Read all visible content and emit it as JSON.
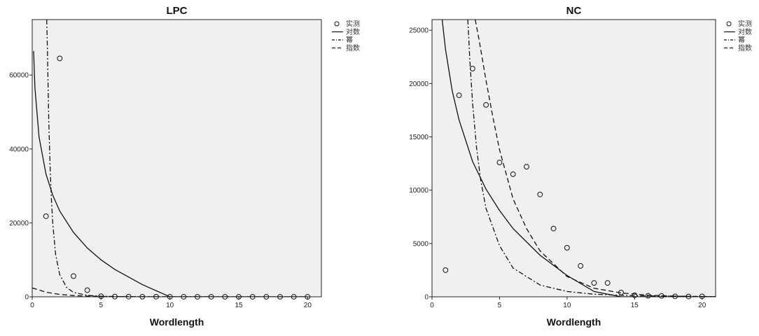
{
  "chart_data": [
    {
      "type": "scatter",
      "title": "LPC",
      "xlabel": "Wordlength",
      "ylabel": "",
      "xlim": [
        0,
        21
      ],
      "ylim": [
        0,
        75000
      ],
      "xticks": [
        0,
        5,
        10,
        15,
        20
      ],
      "yticks": [
        0,
        20000,
        40000,
        60000
      ],
      "grid": false,
      "legend_position": "right-top",
      "legend": [
        "实测",
        "对数",
        "幂",
        "指数"
      ],
      "observed": {
        "name": "实测",
        "x": [
          1,
          2,
          3,
          4,
          5,
          6,
          7,
          8,
          9,
          10,
          11,
          12,
          13,
          14,
          15,
          16,
          17,
          18,
          19,
          20
        ],
        "y": [
          21800,
          64500,
          5600,
          1800,
          150,
          60,
          40,
          30,
          20,
          10,
          10,
          5,
          5,
          5,
          5,
          5,
          5,
          5,
          5,
          5
        ]
      },
      "fits": [
        {
          "name": "对数",
          "x": [
            0.1,
            0.2,
            0.5,
            1,
            1.5,
            2,
            3,
            4,
            5,
            6,
            8,
            10,
            12.2,
            15,
            20
          ],
          "y": [
            66500,
            56500,
            43200,
            33200,
            27400,
            23200,
            17400,
            13200,
            10000,
            7400,
            3300,
            0,
            0,
            0,
            0
          ]
        },
        {
          "name": "幂",
          "x": [
            1.05,
            1.1,
            1.2,
            1.3,
            1.4,
            1.5,
            1.7,
            2,
            2.5,
            3,
            4,
            5,
            7,
            10,
            15,
            20
          ],
          "y": [
            75000,
            68000,
            48000,
            35000,
            26000,
            19500,
            11500,
            6000,
            2500,
            1200,
            400,
            150,
            40,
            10,
            2,
            1
          ]
        },
        {
          "name": "指数",
          "x": [
            0,
            1,
            2,
            3,
            4,
            5,
            6,
            7,
            8,
            10,
            15,
            20
          ],
          "y": [
            2400,
            1250,
            650,
            340,
            180,
            90,
            50,
            25,
            10,
            3,
            0,
            0
          ]
        }
      ]
    },
    {
      "type": "scatter",
      "title": "NC",
      "xlabel": "Wordlength",
      "ylabel": "",
      "xlim": [
        0,
        21
      ],
      "ylim": [
        0,
        26000
      ],
      "xticks": [
        0,
        5,
        10,
        15,
        20
      ],
      "yticks": [
        0,
        5000,
        10000,
        15000,
        20000,
        25000
      ],
      "grid": false,
      "legend_position": "right-top",
      "legend": [
        "实测",
        "对数",
        "幂",
        "指数"
      ],
      "observed": {
        "name": "实测",
        "x": [
          1,
          2,
          3,
          4,
          5,
          6,
          7,
          8,
          9,
          10,
          11,
          12,
          13,
          14,
          15,
          16,
          17,
          18,
          19,
          20
        ],
        "y": [
          2500,
          18900,
          21400,
          18000,
          12600,
          11500,
          12200,
          9600,
          6400,
          4600,
          2900,
          1300,
          1300,
          400,
          150,
          100,
          80,
          40,
          30,
          40
        ]
      },
      "fits": [
        {
          "name": "对数",
          "x": [
            0.75,
            1,
            1.5,
            2,
            3,
            4,
            5,
            6,
            8,
            10,
            12,
            14,
            16,
            18,
            20,
            21
          ],
          "y": [
            26000,
            23200,
            19300,
            16600,
            12700,
            10100,
            8100,
            6400,
            3900,
            2000,
            500,
            0,
            0,
            0,
            0,
            0
          ]
        },
        {
          "name": "幂",
          "x": [
            2.65,
            2.7,
            2.8,
            3,
            3.3,
            3.6,
            4,
            5,
            6,
            8,
            10,
            12,
            15,
            20,
            21
          ],
          "y": [
            26000,
            24800,
            22200,
            18200,
            14000,
            11000,
            8300,
            4800,
            2700,
            1100,
            500,
            240,
            100,
            30,
            20
          ]
        },
        {
          "name": "指数",
          "x": [
            3.2,
            3.5,
            4,
            4.5,
            5,
            6,
            7,
            8,
            10,
            12,
            14,
            16,
            18,
            20,
            21
          ],
          "y": [
            26000,
            24000,
            20300,
            16900,
            13800,
            9200,
            6400,
            4300,
            1900,
            800,
            360,
            150,
            60,
            20,
            10
          ]
        }
      ]
    }
  ]
}
